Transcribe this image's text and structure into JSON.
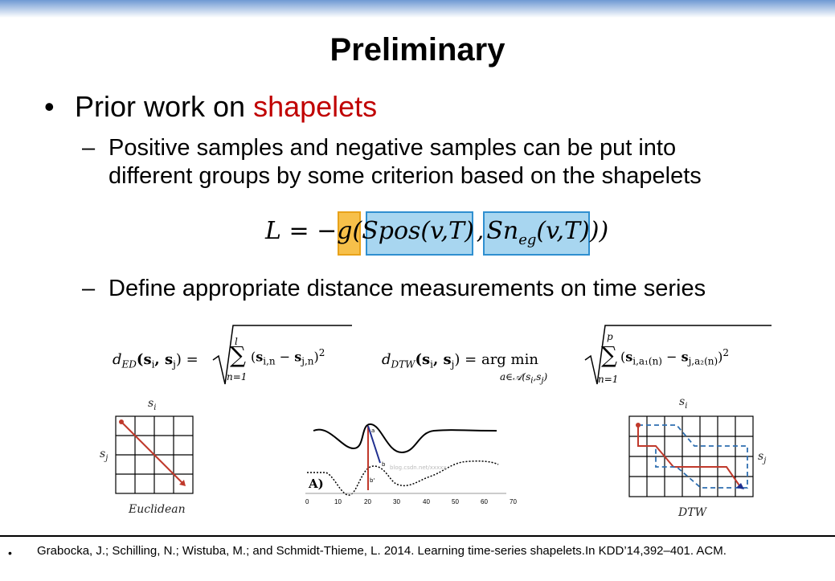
{
  "slide": {
    "title": "Preliminary",
    "bullet1": {
      "marker": "•",
      "prefix": "Prior work on ",
      "highlight": "shapelets"
    },
    "sub1": {
      "marker": "–",
      "line1": "Positive samples and negative samples can be put into",
      "line2": "different groups by some criterion based on the shapelets"
    },
    "formula": {
      "lhs": "L = −",
      "g": "g",
      "open": "(",
      "arg1": "Spos(v,T)",
      "comma": ",",
      "arg2_main": "Sn",
      "arg2_sub": "eg",
      "arg2_rest": "(v,T)",
      "close": "))"
    },
    "sub2": {
      "marker": "–",
      "text": "Define appropriate distance measurements on time series"
    },
    "ed_equation": {
      "lhs": "d",
      "lhs_sub": "ED",
      "args": "(s",
      "eq": ") = ",
      "top": "l",
      "bottom": "n=1",
      "body": "(s",
      "power": "2"
    },
    "dtw_equation": {
      "lhs": "d",
      "lhs_sub": "DTW",
      "argmin": "arg min",
      "argmin_sub": "a∈𝒜(s",
      "top": "p",
      "bottom": "n=1",
      "power": "2"
    },
    "diagram_labels": {
      "si_left": "s",
      "si_sub": "i",
      "sj_left": "s",
      "sj_sub": "j",
      "euclidean": "Euclidean",
      "dtw": "DTW",
      "panel": "A)",
      "ticks": [
        "0",
        "10",
        "20",
        "30",
        "40",
        "50",
        "60",
        "70"
      ],
      "watermark": "blog.csdn.net/xxxxx",
      "point_a": "a",
      "point_b": "b",
      "point_bp": "b'"
    },
    "footer": {
      "marker": "•",
      "citation": "Grabocka, J.; Schilling, N.; Wistuba, M.; and Schmidt-Thieme, L. 2014. Learning time-series shapelets.In KDD’14,392–401. ACM."
    }
  },
  "colors": {
    "title": "#000000",
    "highlight_text": "#c00000",
    "orange_box": "#f7c04a",
    "blue_box": "#a8d6f0",
    "path_red": "#c0392b",
    "path_blue": "#2f6fb0"
  }
}
